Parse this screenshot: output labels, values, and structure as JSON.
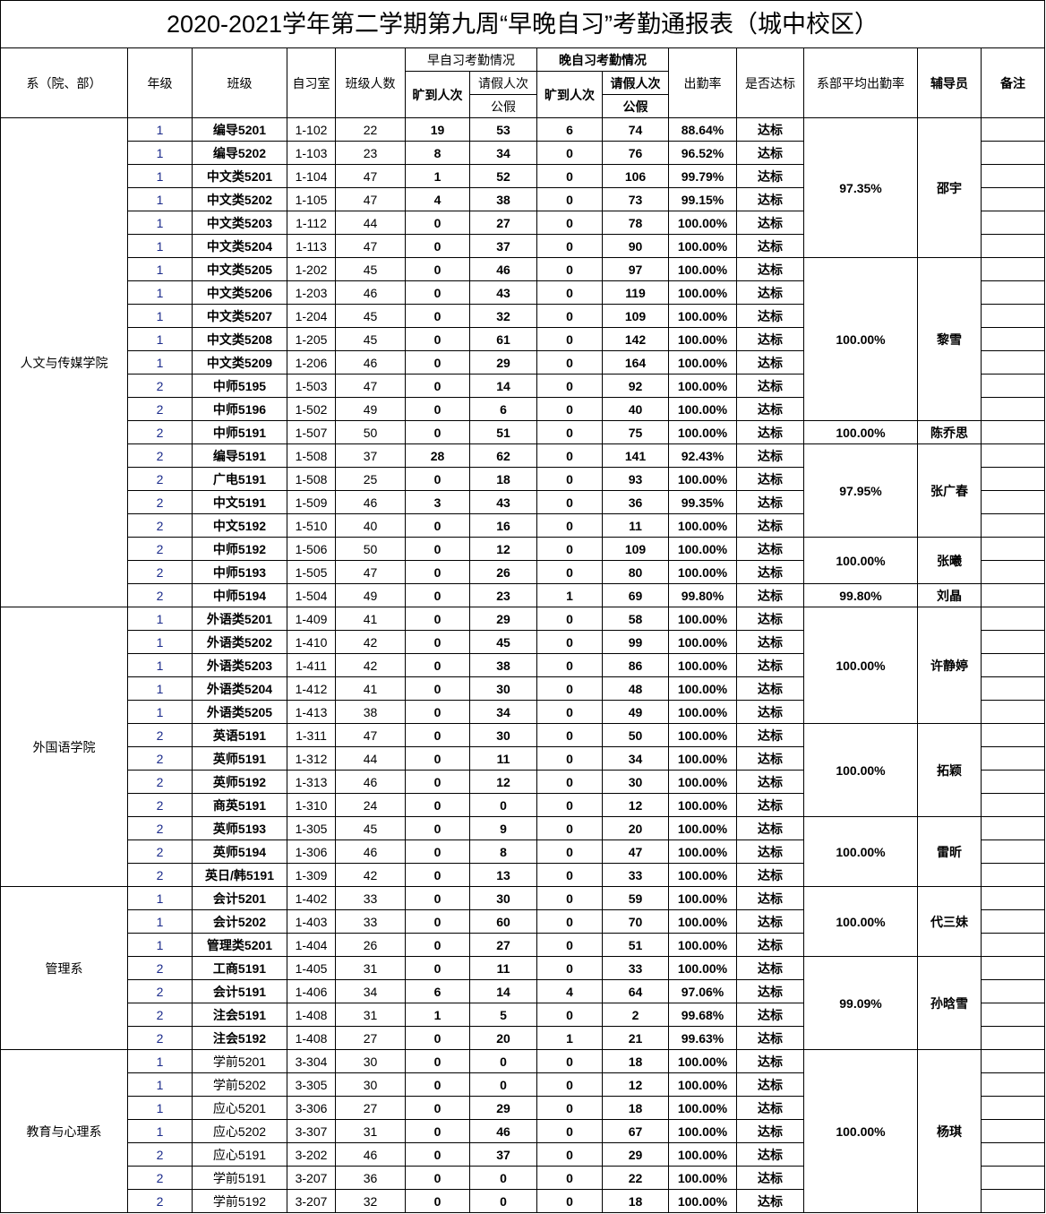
{
  "title": "2020-2021学年第二学期第九周“早晚自习”考勤通报表（城中校区）",
  "headers": {
    "dept": "系（院、部）",
    "grade": "年级",
    "class": "班级",
    "room": "自习室",
    "size": "班级人数",
    "early": "早自习考勤情况",
    "late": "晚自习考勤情况",
    "absent": "旷到人次",
    "leave": "请假人次",
    "public_leave": "公假",
    "rate": "出勤率",
    "status": "是否达标",
    "avg": "系部平均出勤率",
    "advisor": "辅导员",
    "remark": "备注"
  },
  "departments": [
    {
      "name": "人文与传媒学院",
      "rows": 21
    },
    {
      "name": "外国语学院",
      "rows": 12
    },
    {
      "name": "管理系",
      "rows": 7
    },
    {
      "name": "教育与心理系",
      "rows": 7
    }
  ],
  "groups": [
    {
      "avg": "97.35%",
      "advisor": "邵宇",
      "rows": 6
    },
    {
      "avg": "100.00%",
      "advisor": "黎雪",
      "rows": 7
    },
    {
      "avg": "100.00%",
      "advisor": "陈乔思",
      "rows": 1
    },
    {
      "avg": "97.95%",
      "advisor": "张广春",
      "rows": 4
    },
    {
      "avg": "100.00%",
      "advisor": "张曦",
      "rows": 2
    },
    {
      "avg": "99.80%",
      "advisor": "刘晶",
      "rows": 1
    },
    {
      "avg": "100.00%",
      "advisor": "许静婷",
      "rows": 5
    },
    {
      "avg": "100.00%",
      "advisor": "拓颖",
      "rows": 4
    },
    {
      "avg": "100.00%",
      "advisor": "雷昕",
      "rows": 3
    },
    {
      "avg": "100.00%",
      "advisor": "代三妹",
      "rows": 3
    },
    {
      "avg": "99.09%",
      "advisor": "孙晗雪",
      "rows": 4
    },
    {
      "avg": "100.00%",
      "advisor": "杨琪",
      "rows": 7
    }
  ],
  "rows": [
    [
      "1",
      "编导5201",
      "1-102",
      "22",
      "19",
      "53",
      "6",
      "74",
      "88.64%",
      "达标"
    ],
    [
      "1",
      "编导5202",
      "1-103",
      "23",
      "8",
      "34",
      "0",
      "76",
      "96.52%",
      "达标"
    ],
    [
      "1",
      "中文类5201",
      "1-104",
      "47",
      "1",
      "52",
      "0",
      "106",
      "99.79%",
      "达标"
    ],
    [
      "1",
      "中文类5202",
      "1-105",
      "47",
      "4",
      "38",
      "0",
      "73",
      "99.15%",
      "达标"
    ],
    [
      "1",
      "中文类5203",
      "1-112",
      "44",
      "0",
      "27",
      "0",
      "78",
      "100.00%",
      "达标"
    ],
    [
      "1",
      "中文类5204",
      "1-113",
      "47",
      "0",
      "37",
      "0",
      "90",
      "100.00%",
      "达标"
    ],
    [
      "1",
      "中文类5205",
      "1-202",
      "45",
      "0",
      "46",
      "0",
      "97",
      "100.00%",
      "达标"
    ],
    [
      "1",
      "中文类5206",
      "1-203",
      "46",
      "0",
      "43",
      "0",
      "119",
      "100.00%",
      "达标"
    ],
    [
      "1",
      "中文类5207",
      "1-204",
      "45",
      "0",
      "32",
      "0",
      "109",
      "100.00%",
      "达标"
    ],
    [
      "1",
      "中文类5208",
      "1-205",
      "45",
      "0",
      "61",
      "0",
      "142",
      "100.00%",
      "达标"
    ],
    [
      "1",
      "中文类5209",
      "1-206",
      "46",
      "0",
      "29",
      "0",
      "164",
      "100.00%",
      "达标"
    ],
    [
      "2",
      "中师5195",
      "1-503",
      "47",
      "0",
      "14",
      "0",
      "92",
      "100.00%",
      "达标"
    ],
    [
      "2",
      "中师5196",
      "1-502",
      "49",
      "0",
      "6",
      "0",
      "40",
      "100.00%",
      "达标"
    ],
    [
      "2",
      "中师5191",
      "1-507",
      "50",
      "0",
      "51",
      "0",
      "75",
      "100.00%",
      "达标"
    ],
    [
      "2",
      "编导5191",
      "1-508",
      "37",
      "28",
      "62",
      "0",
      "141",
      "92.43%",
      "达标"
    ],
    [
      "2",
      "广电5191",
      "1-508",
      "25",
      "0",
      "18",
      "0",
      "93",
      "100.00%",
      "达标"
    ],
    [
      "2",
      "中文5191",
      "1-509",
      "46",
      "3",
      "43",
      "0",
      "36",
      "99.35%",
      "达标"
    ],
    [
      "2",
      "中文5192",
      "1-510",
      "40",
      "0",
      "16",
      "0",
      "11",
      "100.00%",
      "达标"
    ],
    [
      "2",
      "中师5192",
      "1-506",
      "50",
      "0",
      "12",
      "0",
      "109",
      "100.00%",
      "达标"
    ],
    [
      "2",
      "中师5193",
      "1-505",
      "47",
      "0",
      "26",
      "0",
      "80",
      "100.00%",
      "达标"
    ],
    [
      "2",
      "中师5194",
      "1-504",
      "49",
      "0",
      "23",
      "1",
      "69",
      "99.80%",
      "达标"
    ],
    [
      "1",
      "外语类5201",
      "1-409",
      "41",
      "0",
      "29",
      "0",
      "58",
      "100.00%",
      "达标"
    ],
    [
      "1",
      "外语类5202",
      "1-410",
      "42",
      "0",
      "45",
      "0",
      "99",
      "100.00%",
      "达标"
    ],
    [
      "1",
      "外语类5203",
      "1-411",
      "42",
      "0",
      "38",
      "0",
      "86",
      "100.00%",
      "达标"
    ],
    [
      "1",
      "外语类5204",
      "1-412",
      "41",
      "0",
      "30",
      "0",
      "48",
      "100.00%",
      "达标"
    ],
    [
      "1",
      "外语类5205",
      "1-413",
      "38",
      "0",
      "34",
      "0",
      "49",
      "100.00%",
      "达标"
    ],
    [
      "2",
      "英语5191",
      "1-311",
      "47",
      "0",
      "30",
      "0",
      "50",
      "100.00%",
      "达标"
    ],
    [
      "2",
      "英师5191",
      "1-312",
      "44",
      "0",
      "11",
      "0",
      "34",
      "100.00%",
      "达标"
    ],
    [
      "2",
      "英师5192",
      "1-313",
      "46",
      "0",
      "12",
      "0",
      "30",
      "100.00%",
      "达标"
    ],
    [
      "2",
      "商英5191",
      "1-310",
      "24",
      "0",
      "0",
      "0",
      "12",
      "100.00%",
      "达标"
    ],
    [
      "2",
      "英师5193",
      "1-305",
      "45",
      "0",
      "9",
      "0",
      "20",
      "100.00%",
      "达标"
    ],
    [
      "2",
      "英师5194",
      "1-306",
      "46",
      "0",
      "8",
      "0",
      "47",
      "100.00%",
      "达标"
    ],
    [
      "2",
      "英日/韩5191",
      "1-309",
      "42",
      "0",
      "13",
      "0",
      "33",
      "100.00%",
      "达标"
    ],
    [
      "1",
      "会计5201",
      "1-402",
      "33",
      "0",
      "30",
      "0",
      "59",
      "100.00%",
      "达标"
    ],
    [
      "1",
      "会计5202",
      "1-403",
      "33",
      "0",
      "60",
      "0",
      "70",
      "100.00%",
      "达标"
    ],
    [
      "1",
      "管理类5201",
      "1-404",
      "26",
      "0",
      "27",
      "0",
      "51",
      "100.00%",
      "达标"
    ],
    [
      "2",
      "工商5191",
      "1-405",
      "31",
      "0",
      "11",
      "0",
      "33",
      "100.00%",
      "达标"
    ],
    [
      "2",
      "会计5191",
      "1-406",
      "34",
      "6",
      "14",
      "4",
      "64",
      "97.06%",
      "达标"
    ],
    [
      "2",
      "注会5191",
      "1-408",
      "31",
      "1",
      "5",
      "0",
      "2",
      "99.68%",
      "达标"
    ],
    [
      "2",
      "注会5192",
      "1-408",
      "27",
      "0",
      "20",
      "1",
      "21",
      "99.63%",
      "达标"
    ],
    [
      "1",
      "学前5201",
      "3-304",
      "30",
      "0",
      "0",
      "0",
      "18",
      "100.00%",
      "达标"
    ],
    [
      "1",
      "学前5202",
      "3-305",
      "30",
      "0",
      "0",
      "0",
      "12",
      "100.00%",
      "达标"
    ],
    [
      "1",
      "应心5201",
      "3-306",
      "27",
      "0",
      "29",
      "0",
      "18",
      "100.00%",
      "达标"
    ],
    [
      "1",
      "应心5202",
      "3-307",
      "31",
      "0",
      "46",
      "0",
      "67",
      "100.00%",
      "达标"
    ],
    [
      "2",
      "应心5191",
      "3-202",
      "46",
      "0",
      "37",
      "0",
      "29",
      "100.00%",
      "达标"
    ],
    [
      "2",
      "学前5191",
      "3-207",
      "36",
      "0",
      "0",
      "0",
      "22",
      "100.00%",
      "达标"
    ],
    [
      "2",
      "学前5192",
      "3-207",
      "32",
      "0",
      "0",
      "0",
      "18",
      "100.00%",
      "达标"
    ]
  ]
}
